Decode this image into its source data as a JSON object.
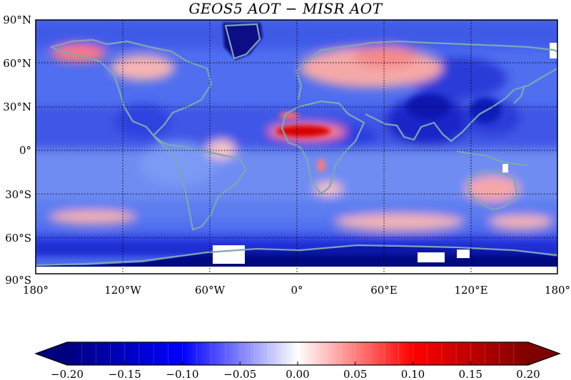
{
  "title": "GEOS5 AOT  −  MISR AOT",
  "map": {
    "lat_labels": [
      "90°N",
      "60°N",
      "30°N",
      "0°",
      "30°S",
      "60°S",
      "90°S"
    ],
    "lon_labels": [
      "180°",
      "120°W",
      "60°W",
      "0°",
      "60°E",
      "120°E",
      "180°"
    ],
    "projection": "cylindrical equidistant",
    "grid": "dotted, every 30° latitude and 60° longitude",
    "coastline_color": "#7fa6b4",
    "missing_data_color": "#ffffff",
    "features": [
      {
        "name": "Sahara / West Africa dust belt",
        "value": 0.18
      },
      {
        "name": "Northern Eurasia",
        "value": 0.05
      },
      {
        "name": "Alaska",
        "value": 0.07
      },
      {
        "name": "Canada",
        "value": 0.04
      },
      {
        "name": "Australia",
        "value": 0.04
      },
      {
        "name": "Southern Ocean 45°S–55°S",
        "value": 0.04
      },
      {
        "name": "Greenland",
        "value": -0.2
      },
      {
        "name": "Antarctica",
        "value": -0.2
      },
      {
        "name": "South / East Asia",
        "value": -0.18
      },
      {
        "name": "Tropical oceans",
        "value": -0.08
      }
    ]
  },
  "colorbar": {
    "ticks": [
      "−0.20",
      "−0.15",
      "−0.10",
      "−0.05",
      "0.00",
      "0.05",
      "0.10",
      "0.15",
      "0.20"
    ],
    "min": -0.2,
    "max": 0.2,
    "extend": "both",
    "colors": [
      "#00007f",
      "#0000ff",
      "#ffffff",
      "#ff0000",
      "#7f0000"
    ]
  }
}
